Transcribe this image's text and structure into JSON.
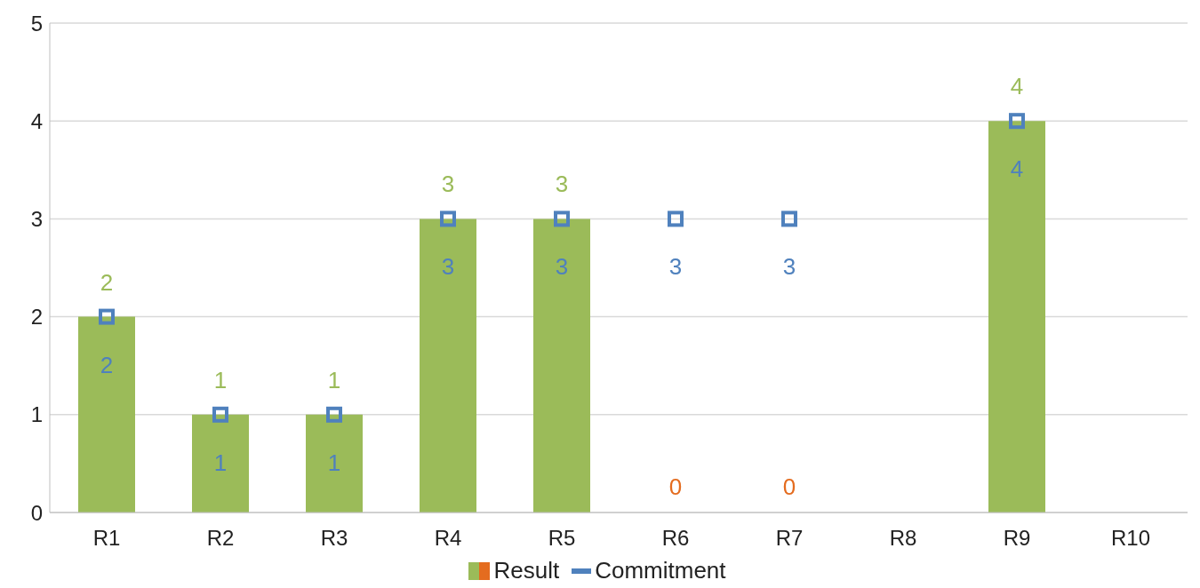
{
  "chart_data": {
    "type": "bar",
    "categories": [
      "R1",
      "R2",
      "R3",
      "R4",
      "R5",
      "R6",
      "R7",
      "R8",
      "R9",
      "R10"
    ],
    "series": [
      {
        "name": "Result",
        "color": "#9bbb59",
        "colors": [
          "#9bbb59",
          "#9bbb59",
          "#9bbb59",
          "#9bbb59",
          "#9bbb59",
          "#e46c1f",
          "#e46c1f",
          "#9bbb59",
          "#9bbb59",
          "#9bbb59"
        ],
        "values": [
          2,
          1,
          1,
          3,
          3,
          0,
          0,
          null,
          4,
          null
        ],
        "value_labels": [
          "2",
          "1",
          "1",
          "3",
          "3",
          "0",
          "0",
          null,
          "4",
          null
        ]
      },
      {
        "name": "Commitment",
        "type": "scatter",
        "marker": "square",
        "color": "#4f81bd",
        "values": [
          2,
          1,
          1,
          3,
          3,
          3,
          3,
          null,
          4,
          null
        ],
        "value_labels": [
          "2",
          "1",
          "1",
          "3",
          "3",
          "3",
          "3",
          null,
          "4",
          null
        ]
      }
    ],
    "ylim": [
      0,
      5
    ],
    "yticks": [
      0,
      1,
      2,
      3,
      4,
      5
    ],
    "grid": "y",
    "legend": "bottom"
  }
}
